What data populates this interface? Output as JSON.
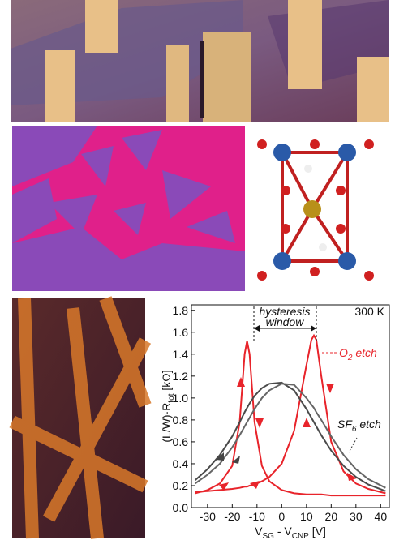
{
  "chart_data": {
    "type": "line",
    "xlabel": [
      "V",
      "SG",
      " - V",
      "CNP",
      " [V]"
    ],
    "ylabel": [
      "(L/W)·R",
      "tot",
      " [kΩ]"
    ],
    "annotations": {
      "hysteresis": "hysteresis",
      "window": "window",
      "temperature": "300 K",
      "o2": [
        "O",
        "2",
        " etch"
      ],
      "sf6": [
        "SF",
        "6",
        " etch"
      ]
    },
    "x": [
      -35,
      -30,
      -25,
      -20,
      -17,
      -15,
      -14,
      -13,
      -11,
      -8,
      -5,
      0,
      5,
      10,
      12,
      13,
      14,
      16,
      20,
      25,
      30,
      35,
      42
    ],
    "series": [
      {
        "color": "#e8242b",
        "values": [
          0.13,
          0.16,
          0.22,
          0.38,
          0.78,
          1.4,
          1.52,
          1.4,
          0.78,
          0.38,
          0.24,
          0.16,
          0.13,
          0.12,
          0.12,
          0.12,
          0.12,
          0.12,
          0.11,
          0.11,
          0.11,
          0.11,
          0.11
        ]
      },
      {
        "color": "#e8242b",
        "values": [
          0.14,
          0.15,
          0.16,
          0.17,
          0.18,
          0.19,
          0.19,
          0.2,
          0.21,
          0.24,
          0.28,
          0.4,
          0.7,
          1.3,
          1.53,
          1.57,
          1.53,
          1.2,
          0.6,
          0.33,
          0.22,
          0.17,
          0.13
        ]
      },
      {
        "color": "#4a4a4a",
        "values": [
          0.25,
          0.35,
          0.48,
          0.65,
          0.78,
          0.87,
          0.91,
          0.95,
          1.02,
          1.09,
          1.13,
          1.14,
          1.07,
          0.9,
          0.82,
          0.78,
          0.74,
          0.66,
          0.52,
          0.38,
          0.28,
          0.21,
          0.15
        ]
      },
      {
        "color": "#666666",
        "values": [
          0.22,
          0.3,
          0.4,
          0.55,
          0.66,
          0.74,
          0.78,
          0.82,
          0.9,
          1.0,
          1.07,
          1.13,
          1.12,
          1.0,
          0.94,
          0.91,
          0.87,
          0.8,
          0.65,
          0.48,
          0.35,
          0.26,
          0.18
        ]
      }
    ],
    "xlim": [
      -36.5,
      43.5
    ],
    "ylim": [
      0,
      1.85
    ],
    "xticks": [
      -30,
      -20,
      -10,
      0,
      10,
      20,
      30,
      40
    ],
    "yticks": [
      {
        "value": 0,
        "label": "0.0"
      },
      0.2,
      0.4,
      0.6,
      0.8,
      {
        "value": 1,
        "label": "1.0"
      },
      1.2,
      1.4,
      1.6,
      1.8
    ]
  }
}
